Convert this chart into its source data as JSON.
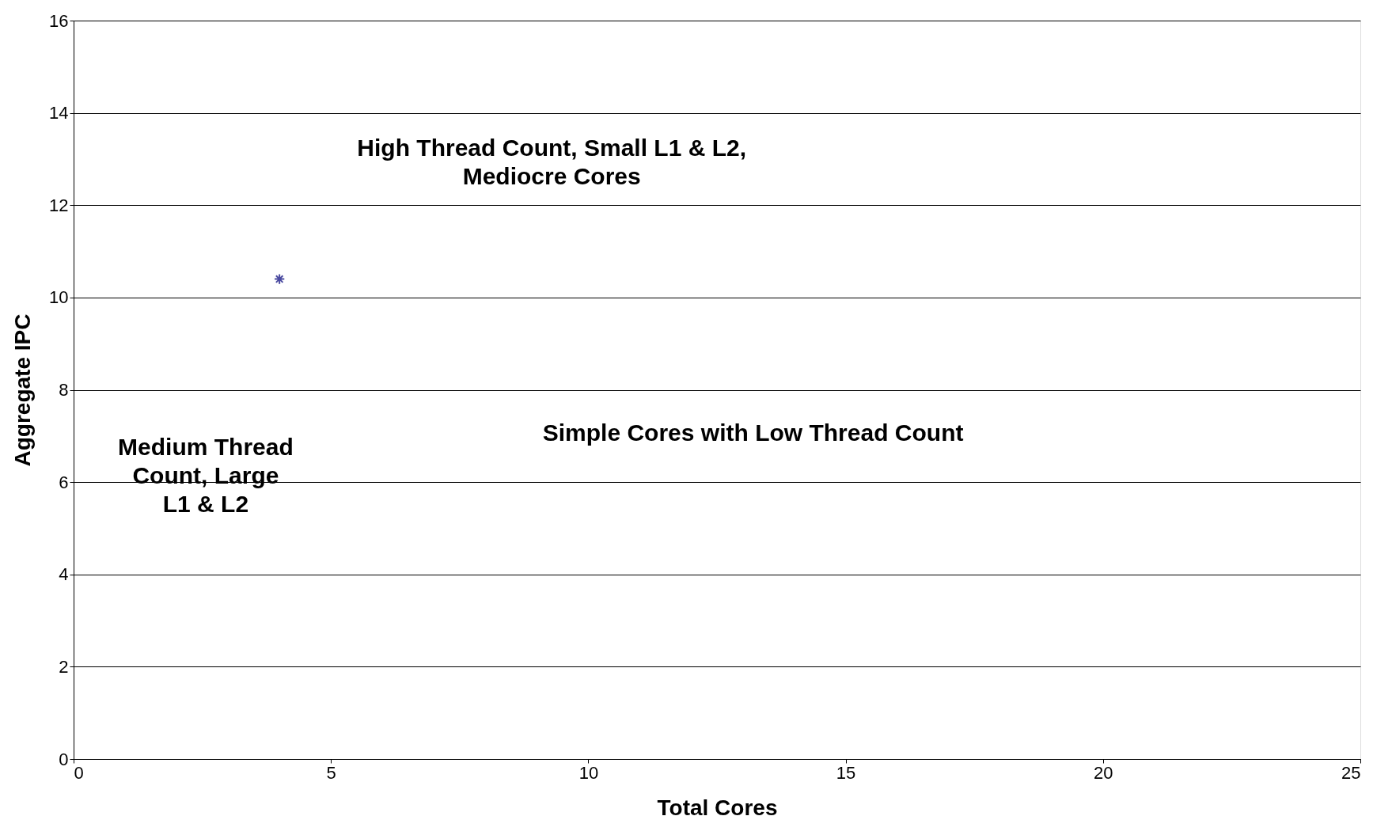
{
  "chart_data": {
    "type": "scatter",
    "xlabel": "Total Cores",
    "ylabel": "Aggregate IPC",
    "x": [
      4
    ],
    "values": [
      10.4
    ],
    "color": "#4a4aa0",
    "marker": "cross",
    "xlim": [
      0,
      25
    ],
    "xticks": [
      0,
      5,
      10,
      15,
      20,
      25
    ],
    "ylim": [
      0,
      16
    ],
    "yticks": [
      0,
      2,
      4,
      6,
      8,
      10,
      12,
      14,
      16
    ],
    "grid": "y",
    "annotations": [
      "High Thread Count, Small L1 & L2, Mediocre Cores",
      "Medium Thread Count, Large L1 & L2",
      "Simple Cores with Low Thread Count"
    ]
  }
}
